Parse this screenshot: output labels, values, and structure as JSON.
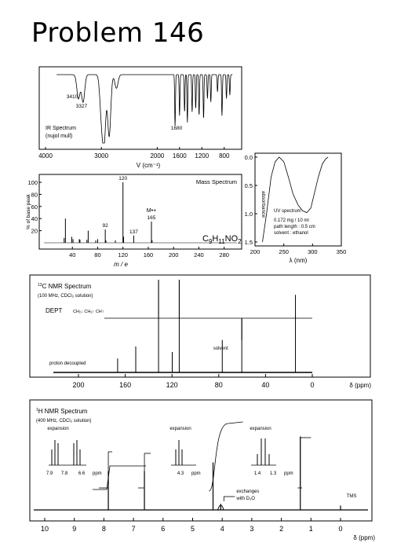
{
  "page": {
    "title": "Problem 146"
  },
  "chart_data": [
    {
      "id": "ir",
      "type": "line",
      "title": "IR Spectrum",
      "subtitle": "(nujol mull)",
      "xlabel": "V (cm⁻¹)",
      "xlim": [
        4000,
        600
      ],
      "xticks": [
        4000,
        3000,
        2000,
        1600,
        1200,
        800
      ],
      "annotations": [
        {
          "label": "3410",
          "x": 3410
        },
        {
          "label": "3327",
          "x": 3327
        },
        {
          "label": "1680",
          "x": 1680
        }
      ],
      "peaks": [
        {
          "x": 3410,
          "depth": 0.35
        },
        {
          "x": 3327,
          "depth": 0.4
        },
        {
          "x": 3000,
          "depth": 0.55
        },
        {
          "x": 2950,
          "depth": 0.95
        },
        {
          "x": 2860,
          "depth": 0.9
        },
        {
          "x": 2730,
          "depth": 0.2
        },
        {
          "x": 1680,
          "depth": 0.75
        },
        {
          "x": 1600,
          "depth": 0.6
        },
        {
          "x": 1510,
          "depth": 0.55
        },
        {
          "x": 1460,
          "depth": 0.7
        },
        {
          "x": 1375,
          "depth": 0.55
        },
        {
          "x": 1310,
          "depth": 0.5
        },
        {
          "x": 1250,
          "depth": 0.6
        },
        {
          "x": 1170,
          "depth": 0.65
        },
        {
          "x": 1100,
          "depth": 0.35
        },
        {
          "x": 1040,
          "depth": 0.4
        },
        {
          "x": 920,
          "depth": 0.25
        },
        {
          "x": 840,
          "depth": 0.6
        },
        {
          "x": 760,
          "depth": 0.35
        },
        {
          "x": 700,
          "depth": 0.3
        }
      ]
    },
    {
      "id": "mass",
      "type": "bar",
      "title": "Mass Spectrum",
      "xlabel": "m / e",
      "ylabel": "% of base peak",
      "xlim": [
        0,
        300
      ],
      "ylim": [
        0,
        100
      ],
      "xticks": [
        40,
        80,
        120,
        160,
        200,
        240,
        280
      ],
      "yticks": [
        20,
        40,
        60,
        80,
        100
      ],
      "formula_main": "C",
      "formula_sub1": "9",
      "formula_mid": "H",
      "formula_sub2": "11",
      "formula_end": "NO",
      "formula_sub3": "2",
      "molecular_ion_label": "M•+",
      "peaks": [
        {
          "mz": 27,
          "value": 8
        },
        {
          "mz": 29,
          "value": 40
        },
        {
          "mz": 39,
          "value": 10
        },
        {
          "mz": 41,
          "value": 6
        },
        {
          "mz": 51,
          "value": 6
        },
        {
          "mz": 52,
          "value": 5
        },
        {
          "mz": 63,
          "value": 5
        },
        {
          "mz": 65,
          "value": 20
        },
        {
          "mz": 77,
          "value": 4
        },
        {
          "mz": 80,
          "value": 6
        },
        {
          "mz": 92,
          "value": 22
        },
        {
          "mz": 93,
          "value": 4
        },
        {
          "mz": 108,
          "value": 4
        },
        {
          "mz": 120,
          "value": 100
        },
        {
          "mz": 121,
          "value": 10
        },
        {
          "mz": 137,
          "value": 12
        },
        {
          "mz": 165,
          "value": 35
        },
        {
          "mz": 166,
          "value": 4
        }
      ],
      "peak_labels": [
        {
          "mz": 120,
          "label": "120"
        },
        {
          "mz": 92,
          "label": "92"
        },
        {
          "mz": 137,
          "label": "137"
        },
        {
          "mz": 165,
          "label": "165"
        }
      ]
    },
    {
      "id": "uv",
      "type": "line",
      "ylabel": "absorbance",
      "xlabel": "λ (nm)",
      "xlim": [
        200,
        350
      ],
      "ylim": [
        0.0,
        1.5
      ],
      "xticks": [
        200,
        250,
        300,
        350
      ],
      "yticks": [
        "0.0",
        "0.5",
        "1.0",
        "1.5"
      ],
      "info_title": "UV spectrum",
      "info_lines": [
        "0.172 mg / 10 ml",
        "path length : 0.5 cm",
        "solvent : ethanol"
      ],
      "points": [
        [
          213,
          1.5
        ],
        [
          220,
          1.0
        ],
        [
          228,
          0.35
        ],
        [
          235,
          0.08
        ],
        [
          242,
          0.0
        ],
        [
          250,
          0.08
        ],
        [
          258,
          0.35
        ],
        [
          266,
          0.65
        ],
        [
          275,
          0.85
        ],
        [
          283,
          0.95
        ],
        [
          290,
          0.98
        ],
        [
          297,
          0.9
        ],
        [
          303,
          0.65
        ],
        [
          310,
          0.35
        ],
        [
          317,
          0.12
        ],
        [
          323,
          0.03
        ],
        [
          327,
          0.0
        ]
      ]
    },
    {
      "id": "c13",
      "type": "line",
      "title_sup": "13",
      "title": "C NMR Spectrum",
      "subtitle": "(100 MHz, CDCl₃ solution)",
      "dept_label": "DEPT",
      "dept_legend": "CH₂↓ CH₃↑ CH↑",
      "decoupled_label": "proton decoupled",
      "solvent_label": "solvent",
      "xlabel": "δ (ppm)",
      "xlim": [
        220,
        0
      ],
      "xticks": [
        200,
        160,
        120,
        80,
        40,
        0
      ],
      "peaks": [
        {
          "ppm": 166.5,
          "h": 0.15,
          "dept": 0
        },
        {
          "ppm": 151.0,
          "h": 0.28,
          "dept": 0
        },
        {
          "ppm": 131.5,
          "h": 1.0,
          "dept": 1.0
        },
        {
          "ppm": 119.8,
          "h": 0.22,
          "dept": 0
        },
        {
          "ppm": 113.8,
          "h": 1.0,
          "dept": 1.0
        },
        {
          "ppm": 77.0,
          "h": 0.35,
          "dept": 0
        },
        {
          "ppm": 60.3,
          "h": 0.58,
          "dept": -0.58
        },
        {
          "ppm": 14.4,
          "h": 0.62,
          "dept": 0.62
        }
      ]
    },
    {
      "id": "h1",
      "type": "line",
      "title_sup": "1",
      "title": "H NMR Spectrum",
      "subtitle": "(400 MHz, CDCl₃ solution)",
      "xlabel": "δ (ppm)",
      "xlim": [
        10.3,
        -0.2
      ],
      "xticks": [
        10,
        9,
        8,
        7,
        6,
        5,
        4,
        3,
        2,
        1,
        0
      ],
      "tms_label": "TMS",
      "exchange_label_1": "exchanges",
      "exchange_label_2": "with D₂O",
      "expansions": [
        {
          "label": "expansion",
          "ticks": [
            "7.9",
            "7.8",
            "6.6"
          ],
          "unit": "ppm"
        },
        {
          "label": "expansion",
          "ticks": [
            "4.3"
          ],
          "unit": "ppm"
        },
        {
          "label": "expansion",
          "ticks": [
            "1.4",
            "1.3"
          ],
          "unit": "ppm"
        }
      ],
      "peaks": [
        {
          "ppm": 7.85,
          "h": 0.45,
          "integral": 2
        },
        {
          "ppm": 6.63,
          "h": 0.45,
          "integral": 2
        },
        {
          "ppm": 4.31,
          "h": 0.55,
          "integral": 2
        },
        {
          "ppm": 4.05,
          "h": 0.07,
          "integral": 2
        },
        {
          "ppm": 1.36,
          "h": 0.85,
          "integral": 3
        },
        {
          "ppm": 0.0,
          "h": 0.05,
          "integral": 0
        }
      ]
    }
  ]
}
